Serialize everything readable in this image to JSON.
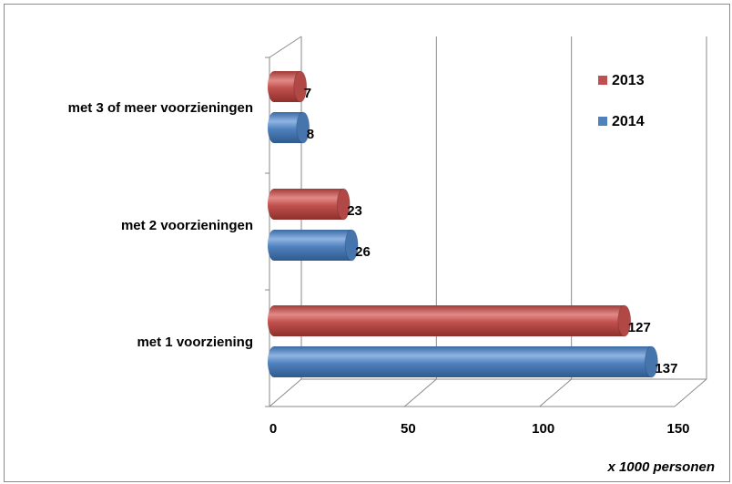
{
  "chart_data": {
    "type": "bar",
    "orientation": "horizontal",
    "style": "3d-cylinder",
    "categories": [
      "met 3 of meer voorzieningen",
      "met 2 voorzieningen",
      "met 1 voorziening"
    ],
    "series": [
      {
        "name": "2013",
        "values": [
          7,
          23,
          127
        ],
        "color": "#c0504d"
      },
      {
        "name": "2014",
        "values": [
          8,
          26,
          137
        ],
        "color": "#4f81bd"
      }
    ],
    "xticks": [
      "0",
      "50",
      "100",
      "150"
    ],
    "xlim": [
      0,
      150
    ],
    "xlabel": "x 1000 personen",
    "grid": true,
    "legend": "top-right"
  }
}
